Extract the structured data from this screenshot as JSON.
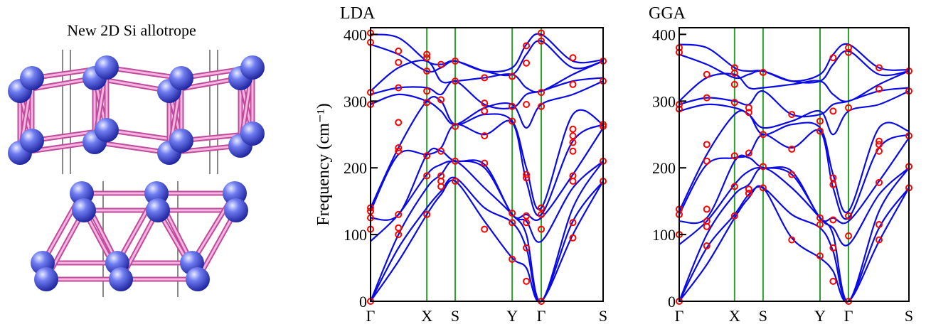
{
  "figure_title": "New 2D Si allotrope",
  "chart_data": [
    {
      "type": "line",
      "title": "LDA",
      "ylabel": "Frequency (cm⁻¹)",
      "xlim": [
        0,
        1
      ],
      "ylim": [
        0,
        410
      ],
      "yticks": [
        0,
        100,
        200,
        300,
        400
      ],
      "xticks": [
        {
          "value": 0,
          "label": "Γ"
        },
        {
          "value": 0.242,
          "label": "X"
        },
        {
          "value": 0.364,
          "label": "S"
        },
        {
          "value": 0.609,
          "label": "Y"
        },
        {
          "value": 0.734,
          "label": "Γ"
        },
        {
          "value": 1,
          "label": "S"
        }
      ],
      "vline_color": "#2ca02c",
      "x": [
        0,
        0.12,
        0.242,
        0.303,
        0.364,
        0.49,
        0.609,
        0.67,
        0.734,
        0.87,
        1
      ],
      "series": [
        {
          "color": "#0a0ae6",
          "values": [
            0,
            60,
            130,
            160,
            180,
            120,
            65,
            50,
            0,
            100,
            180
          ]
        },
        {
          "color": "#0a0ae6",
          "values": [
            0,
            80,
            140,
            165,
            185,
            140,
            118,
            80,
            0,
            120,
            180
          ]
        },
        {
          "color": "#0a0ae6",
          "values": [
            0,
            100,
            170,
            190,
            210,
            170,
            130,
            100,
            0,
            140,
            210
          ]
        },
        {
          "color": "#0a0ae6",
          "values": [
            90,
            130,
            190,
            205,
            210,
            200,
            130,
            120,
            90,
            170,
            210
          ]
        },
        {
          "color": "#0a0ae6",
          "values": [
            125,
            130,
            220,
            225,
            210,
            205,
            130,
            130,
            125,
            190,
            260
          ]
        },
        {
          "color": "#0a0ae6",
          "values": [
            135,
            220,
            220,
            230,
            265,
            250,
            268,
            180,
            130,
            240,
            265
          ]
        },
        {
          "color": "#0a0ae6",
          "values": [
            140,
            230,
            300,
            300,
            265,
            280,
            270,
            200,
            140,
            280,
            265
          ]
        },
        {
          "color": "#0a0ae6",
          "values": [
            295,
            310,
            300,
            285,
            265,
            290,
            295,
            260,
            295,
            310,
            330
          ]
        },
        {
          "color": "#0a0ae6",
          "values": [
            310,
            320,
            320,
            310,
            330,
            295,
            290,
            310,
            315,
            330,
            335
          ]
        },
        {
          "color": "#0a0ae6",
          "values": [
            315,
            350,
            360,
            330,
            330,
            335,
            340,
            320,
            315,
            340,
            360
          ]
        },
        {
          "color": "#0a0ae6",
          "values": [
            385,
            370,
            345,
            350,
            360,
            345,
            340,
            370,
            390,
            350,
            360
          ]
        },
        {
          "color": "#0a0ae6",
          "values": [
            400,
            395,
            360,
            355,
            360,
            345,
            350,
            385,
            400,
            360,
            362
          ]
        }
      ],
      "points": {
        "color": "#ff0000",
        "x": [
          0,
          0,
          0,
          0,
          0,
          0,
          0,
          0,
          0,
          0.12,
          0.12,
          0.12,
          0.12,
          0.12,
          0.12,
          0.12,
          0.12,
          0.12,
          0.242,
          0.242,
          0.242,
          0.242,
          0.242,
          0.242,
          0.242,
          0.242,
          0.303,
          0.303,
          0.303,
          0.303,
          0.303,
          0.303,
          0.364,
          0.364,
          0.364,
          0.364,
          0.364,
          0.49,
          0.49,
          0.49,
          0.49,
          0.49,
          0.49,
          0.609,
          0.609,
          0.609,
          0.609,
          0.609,
          0.609,
          0.67,
          0.67,
          0.67,
          0.67,
          0.67,
          0.67,
          0.67,
          0.67,
          0.67,
          0.734,
          0.734,
          0.734,
          0.734,
          0.734,
          0.734,
          0.734,
          0.734,
          0.87,
          0.87,
          0.87,
          0.87,
          0.87,
          0.87,
          0.87,
          0.87,
          0.87,
          0.87,
          1,
          1,
          1,
          1,
          1,
          1
        ],
        "y": [
          0,
          108,
          125,
          135,
          140,
          295,
          313,
          388,
          402,
          100,
          110,
          130,
          225,
          230,
          268,
          320,
          358,
          375,
          130,
          188,
          218,
          298,
          315,
          345,
          365,
          370,
          172,
          180,
          188,
          225,
          302,
          355,
          180,
          210,
          262,
          330,
          360,
          108,
          207,
          248,
          285,
          297,
          335,
          63,
          118,
          132,
          270,
          292,
          337,
          30,
          80,
          118,
          128,
          185,
          190,
          295,
          357,
          383,
          0,
          108,
          130,
          140,
          292,
          313,
          390,
          402,
          95,
          118,
          180,
          188,
          225,
          238,
          248,
          258,
          325,
          365,
          180,
          210,
          262,
          265,
          330,
          360
        ]
      }
    },
    {
      "type": "line",
      "title": "GGA",
      "xlim": [
        0,
        1
      ],
      "ylim": [
        0,
        410
      ],
      "yticks": [
        0,
        100,
        200,
        300,
        400
      ],
      "xticks": [
        {
          "value": 0,
          "label": "Γ"
        },
        {
          "value": 0.241,
          "label": "X"
        },
        {
          "value": 0.365,
          "label": "S"
        },
        {
          "value": 0.613,
          "label": "Y"
        },
        {
          "value": 0.737,
          "label": "Γ"
        },
        {
          "value": 1,
          "label": "S"
        }
      ],
      "vline_color": "#2ca02c",
      "x": [
        0,
        0.12,
        0.241,
        0.303,
        0.365,
        0.49,
        0.613,
        0.67,
        0.737,
        0.87,
        1
      ],
      "series": [
        {
          "color": "#0a0ae6",
          "values": [
            0,
            55,
            125,
            155,
            170,
            95,
            65,
            45,
            0,
            90,
            170
          ]
        },
        {
          "color": "#0a0ae6",
          "values": [
            0,
            80,
            130,
            160,
            170,
            130,
            110,
            75,
            0,
            110,
            170
          ]
        },
        {
          "color": "#0a0ae6",
          "values": [
            0,
            100,
            160,
            175,
            200,
            170,
            125,
            100,
            0,
            135,
            200
          ]
        },
        {
          "color": "#0a0ae6",
          "values": [
            85,
            120,
            175,
            195,
            200,
            190,
            125,
            110,
            85,
            160,
            200
          ]
        },
        {
          "color": "#0a0ae6",
          "values": [
            120,
            125,
            210,
            215,
            200,
            195,
            125,
            125,
            120,
            180,
            245
          ]
        },
        {
          "color": "#0a0ae6",
          "values": [
            130,
            205,
            215,
            220,
            250,
            230,
            255,
            170,
            125,
            230,
            250
          ]
        },
        {
          "color": "#0a0ae6",
          "values": [
            135,
            220,
            280,
            280,
            250,
            265,
            260,
            190,
            135,
            260,
            255
          ]
        },
        {
          "color": "#0a0ae6",
          "values": [
            285,
            295,
            290,
            280,
            260,
            270,
            285,
            250,
            285,
            295,
            315
          ]
        },
        {
          "color": "#0a0ae6",
          "values": [
            295,
            305,
            300,
            295,
            315,
            280,
            280,
            295,
            300,
            315,
            320
          ]
        },
        {
          "color": "#0a0ae6",
          "values": [
            300,
            335,
            340,
            320,
            320,
            325,
            330,
            310,
            300,
            325,
            345
          ]
        },
        {
          "color": "#0a0ae6",
          "values": [
            370,
            355,
            335,
            340,
            345,
            330,
            330,
            355,
            375,
            340,
            345
          ]
        },
        {
          "color": "#0a0ae6",
          "values": [
            385,
            380,
            350,
            345,
            345,
            330,
            340,
            370,
            385,
            350,
            347
          ]
        }
      ],
      "points": {
        "color": "#ff0000",
        "x": [
          0,
          0,
          0,
          0,
          0,
          0,
          0,
          0,
          0.12,
          0.12,
          0.12,
          0.12,
          0.12,
          0.12,
          0.12,
          0.12,
          0.241,
          0.241,
          0.241,
          0.241,
          0.241,
          0.241,
          0.241,
          0.303,
          0.303,
          0.303,
          0.303,
          0.303,
          0.365,
          0.365,
          0.365,
          0.365,
          0.49,
          0.49,
          0.49,
          0.49,
          0.613,
          0.613,
          0.613,
          0.613,
          0.613,
          0.67,
          0.67,
          0.67,
          0.67,
          0.67,
          0.67,
          0.67,
          0.737,
          0.737,
          0.737,
          0.737,
          0.737,
          0.737,
          0.87,
          0.87,
          0.87,
          0.87,
          0.87,
          0.87,
          0.87,
          0.87,
          1,
          1,
          1,
          1,
          1
        ],
        "y": [
          0,
          100,
          130,
          138,
          288,
          295,
          373,
          380,
          83,
          112,
          120,
          138,
          210,
          235,
          305,
          340,
          128,
          172,
          218,
          298,
          325,
          342,
          350,
          162,
          168,
          222,
          283,
          290,
          170,
          202,
          250,
          343,
          92,
          190,
          228,
          280,
          68,
          115,
          125,
          255,
          270,
          30,
          80,
          122,
          175,
          185,
          285,
          365,
          0,
          98,
          128,
          290,
          373,
          380,
          92,
          115,
          178,
          225,
          235,
          240,
          318,
          350,
          170,
          202,
          248,
          315,
          345
        ]
      }
    }
  ]
}
